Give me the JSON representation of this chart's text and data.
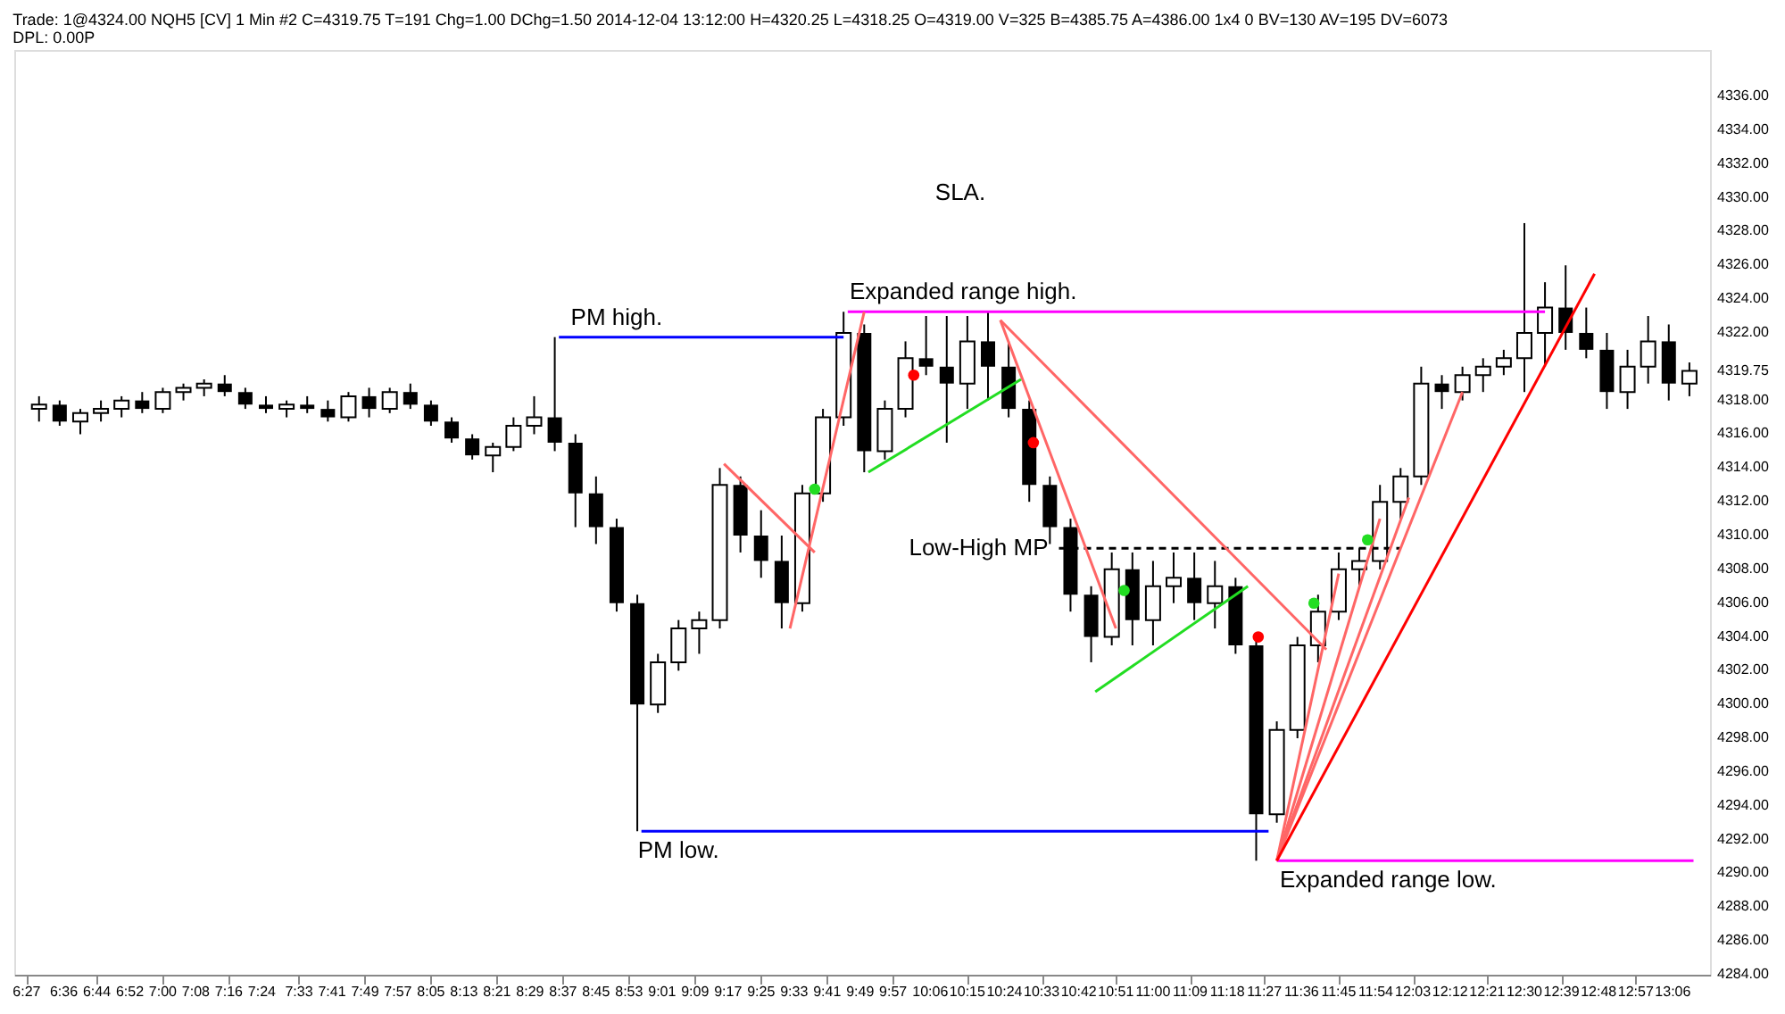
{
  "chart_data": {
    "type": "candlestick",
    "x": [
      6.5,
      6.5833,
      6.6667,
      6.75,
      6.8333,
      6.9167,
      7.0,
      7.0833,
      7.1667,
      7.25,
      7.3333,
      7.4167,
      7.5,
      7.5833,
      7.6667,
      7.75,
      7.8333,
      7.9167,
      8.0,
      8.0833,
      8.1667,
      8.25,
      8.3333,
      8.4167,
      8.5,
      8.5833,
      8.6667,
      8.75,
      8.8333,
      8.9167,
      9.0,
      9.0833,
      9.1667,
      9.25,
      9.3333,
      9.4167,
      9.5,
      9.5833,
      9.6667,
      9.75,
      9.8333,
      9.9167,
      10.0,
      10.0833,
      10.1667,
      10.25,
      10.3333,
      10.4167,
      10.5,
      10.5833,
      10.6667,
      10.75,
      10.8333,
      10.9167,
      11.0,
      11.0833,
      11.1667,
      11.25,
      11.3333,
      11.4167,
      11.5,
      11.5833,
      11.6667,
      11.75,
      11.8333,
      11.9167,
      12.0,
      12.0833,
      12.1667,
      12.25,
      12.3333,
      12.4167,
      12.5,
      12.5833,
      12.6667,
      12.75,
      12.8333,
      12.9167,
      13.0,
      13.0833,
      13.1667
    ],
    "ohlc": [
      [
        4317.5,
        4318.25,
        4316.75,
        4317.75
      ],
      [
        4317.75,
        4318,
        4316.5,
        4316.75
      ],
      [
        4316.75,
        4317.5,
        4316,
        4317.25
      ],
      [
        4317.25,
        4318,
        4316.75,
        4317.5
      ],
      [
        4317.5,
        4318.25,
        4317,
        4318
      ],
      [
        4318,
        4318.5,
        4317.25,
        4317.5
      ],
      [
        4317.5,
        4318.75,
        4317.25,
        4318.5
      ],
      [
        4318.5,
        4319,
        4318,
        4318.75
      ],
      [
        4318.75,
        4319.25,
        4318.25,
        4319
      ],
      [
        4319,
        4319.5,
        4318.25,
        4318.5
      ],
      [
        4318.5,
        4318.75,
        4317.5,
        4317.75
      ],
      [
        4317.75,
        4318.25,
        4317.25,
        4317.5
      ],
      [
        4317.5,
        4318,
        4317,
        4317.75
      ],
      [
        4317.75,
        4318.25,
        4317.25,
        4317.5
      ],
      [
        4317.5,
        4318,
        4316.75,
        4317
      ],
      [
        4317,
        4318.5,
        4316.75,
        4318.25
      ],
      [
        4318.25,
        4318.75,
        4317,
        4317.5
      ],
      [
        4317.5,
        4318.75,
        4317.25,
        4318.5
      ],
      [
        4318.5,
        4319,
        4317.5,
        4317.75
      ],
      [
        4317.75,
        4318,
        4316.5,
        4316.75
      ],
      [
        4316.75,
        4317,
        4315.5,
        4315.75
      ],
      [
        4315.75,
        4316,
        4314.5,
        4314.75
      ],
      [
        4314.75,
        4315.5,
        4313.75,
        4315.25
      ],
      [
        4315.25,
        4317,
        4315,
        4316.5
      ],
      [
        4316.5,
        4318.25,
        4316,
        4317
      ],
      [
        4317,
        4321.75,
        4315,
        4315.5
      ],
      [
        4315.5,
        4316,
        4310.5,
        4312.5
      ],
      [
        4312.5,
        4313.5,
        4309.5,
        4310.5
      ],
      [
        4310.5,
        4311,
        4305.5,
        4306
      ],
      [
        4306,
        4306.5,
        4292.5,
        4300
      ],
      [
        4300,
        4303,
        4299.5,
        4302.5
      ],
      [
        4302.5,
        4305,
        4302,
        4304.5
      ],
      [
        4304.5,
        4305.5,
        4303,
        4305
      ],
      [
        4305,
        4314,
        4304.5,
        4313
      ],
      [
        4313,
        4313.5,
        4309,
        4310
      ],
      [
        4310,
        4311.5,
        4307.5,
        4308.5
      ],
      [
        4308.5,
        4310,
        4304.5,
        4306
      ],
      [
        4306,
        4313,
        4305.5,
        4312.5
      ],
      [
        4312.5,
        4317.5,
        4312,
        4317
      ],
      [
        4317,
        4323.25,
        4316.5,
        4322
      ],
      [
        4322,
        4322.5,
        4313.75,
        4315
      ],
      [
        4315,
        4318,
        4314.5,
        4317.5
      ],
      [
        4317.5,
        4321.5,
        4317,
        4320.5
      ],
      [
        4320.5,
        4323,
        4319.5,
        4320
      ],
      [
        4320,
        4323,
        4315.5,
        4319
      ],
      [
        4319,
        4323,
        4317.5,
        4321.5
      ],
      [
        4321.5,
        4323.25,
        4318,
        4320
      ],
      [
        4320,
        4321.5,
        4317,
        4317.5
      ],
      [
        4317.5,
        4318,
        4312,
        4313
      ],
      [
        4313,
        4313.5,
        4309.5,
        4310.5
      ],
      [
        4310.5,
        4311,
        4305.5,
        4306.5
      ],
      [
        4306.5,
        4307,
        4302.5,
        4304
      ],
      [
        4304,
        4309,
        4303.5,
        4308
      ],
      [
        4308,
        4309,
        4303.5,
        4305
      ],
      [
        4305,
        4308.5,
        4303.5,
        4307
      ],
      [
        4307,
        4309,
        4306,
        4307.5
      ],
      [
        4307.5,
        4309,
        4305,
        4306
      ],
      [
        4306,
        4308.5,
        4304.5,
        4307
      ],
      [
        4307,
        4307.5,
        4303,
        4303.5
      ],
      [
        4303.5,
        4304,
        4290.75,
        4293.5
      ],
      [
        4293.5,
        4299,
        4293,
        4298.5
      ],
      [
        4298.5,
        4304,
        4298,
        4303.5
      ],
      [
        4303.5,
        4306.5,
        4302.5,
        4305.5
      ],
      [
        4305.5,
        4309,
        4305,
        4308
      ],
      [
        4308,
        4309.25,
        4307,
        4308.5
      ],
      [
        4308.5,
        4313,
        4308,
        4312
      ],
      [
        4312,
        4314,
        4311,
        4313.5
      ],
      [
        4313.5,
        4320,
        4313,
        4319
      ],
      [
        4319,
        4319.5,
        4317.5,
        4318.5
      ],
      [
        4318.5,
        4320,
        4318,
        4319.5
      ],
      [
        4319.5,
        4320.5,
        4318.5,
        4320
      ],
      [
        4320,
        4321,
        4319.5,
        4320.5
      ],
      [
        4320.5,
        4328.5,
        4318.5,
        4322
      ],
      [
        4322,
        4325,
        4320,
        4323.5
      ],
      [
        4323.5,
        4326,
        4321,
        4322
      ],
      [
        4322,
        4323.5,
        4320.5,
        4321
      ],
      [
        4321,
        4322,
        4317.5,
        4318.5
      ],
      [
        4318.5,
        4321,
        4317.5,
        4320
      ],
      [
        4320,
        4323,
        4319,
        4321.5
      ],
      [
        4321.5,
        4322.5,
        4318,
        4319
      ],
      [
        4319,
        4320.25,
        4318.25,
        4319.75
      ]
    ],
    "series": [
      {
        "type": "line",
        "color": "#0000ff",
        "x": [
          8.6,
          9.75
        ],
        "values": [
          4321.75,
          4321.75
        ]
      },
      {
        "type": "line",
        "color": "#0000ff",
        "x": [
          8.9333,
          11.4667
        ],
        "values": [
          4292.5,
          4292.5
        ]
      },
      {
        "type": "line",
        "color": "#ff00ff",
        "x": [
          9.7667,
          12.5833
        ],
        "values": [
          4323.25,
          4323.25
        ]
      },
      {
        "type": "line",
        "color": "#ff00ff",
        "x": [
          11.5,
          13.1833
        ],
        "values": [
          4290.75,
          4290.75
        ]
      },
      {
        "type": "line",
        "color": "#000000",
        "line_style": "dashed",
        "x": [
          10.62,
          12.0
        ],
        "values": [
          4309.25,
          4309.25
        ]
      },
      {
        "type": "line",
        "color": "#ff6666",
        "x": [
          9.2667,
          9.6333
        ],
        "values": [
          4314.25,
          4309
        ]
      },
      {
        "type": "line",
        "color": "#ff6666",
        "x": [
          9.5333,
          9.8333
        ],
        "values": [
          4304.5,
          4323.25
        ]
      },
      {
        "type": "line",
        "color": "#ff6666",
        "x": [
          10.3833,
          10.85
        ],
        "values": [
          4322.75,
          4304.5
        ]
      },
      {
        "type": "line",
        "color": "#ff6666",
        "x": [
          10.3833,
          11.7
        ],
        "values": [
          4322.75,
          4303.25
        ]
      },
      {
        "type": "line",
        "color": "#ff6666",
        "x": [
          11.5,
          11.75
        ],
        "values": [
          4290.75,
          4307.75
        ]
      },
      {
        "type": "line",
        "color": "#ff6666",
        "x": [
          11.5,
          11.9167
        ],
        "values": [
          4290.75,
          4311
        ]
      },
      {
        "type": "line",
        "color": "#ff6666",
        "x": [
          11.5,
          12.0333
        ],
        "values": [
          4290.75,
          4312.25
        ]
      },
      {
        "type": "line",
        "color": "#ff6666",
        "x": [
          11.5,
          12.25
        ],
        "values": [
          4290.75,
          4318.5
        ]
      },
      {
        "type": "line",
        "color": "#ff0000",
        "x": [
          11.5,
          12.7833
        ],
        "values": [
          4290.75,
          4325.5
        ]
      },
      {
        "type": "line",
        "color": "#22dd22",
        "x": [
          9.85,
          10.4667
        ],
        "values": [
          4313.75,
          4319.25
        ]
      },
      {
        "type": "line",
        "color": "#22dd22",
        "x": [
          10.7667,
          11.3833
        ],
        "values": [
          4300.75,
          4307
        ]
      },
      {
        "type": "scatter",
        "color": "#ff0000",
        "x": [
          10.0333,
          10.5167,
          11.425
        ],
        "values": [
          4319.5,
          4315.5,
          4304
        ]
      },
      {
        "type": "scatter",
        "color": "#22dd22",
        "x": [
          9.6333,
          10.8833,
          11.65,
          11.8667
        ],
        "values": [
          4312.75,
          4306.75,
          4306,
          4309.75
        ]
      }
    ],
    "xlim": [
      6.4,
      13.25
    ],
    "xticks": [
      {
        "value": 6.45,
        "label": "6:27"
      },
      {
        "value": 6.6,
        "label": "6:36"
      },
      {
        "value": 6.7333,
        "label": "6:44"
      },
      {
        "value": 6.8667,
        "label": "6:52"
      },
      {
        "value": 7.0,
        "label": "7:00"
      },
      {
        "value": 7.1333,
        "label": "7:08"
      },
      {
        "value": 7.2667,
        "label": "7:16"
      },
      {
        "value": 7.4,
        "label": "7:24"
      },
      {
        "value": 7.55,
        "label": "7:33"
      },
      {
        "value": 7.6833,
        "label": "7:41"
      },
      {
        "value": 7.8167,
        "label": "7:49"
      },
      {
        "value": 7.95,
        "label": "7:57"
      },
      {
        "value": 8.0833,
        "label": "8:05"
      },
      {
        "value": 8.2167,
        "label": "8:13"
      },
      {
        "value": 8.35,
        "label": "8:21"
      },
      {
        "value": 8.4833,
        "label": "8:29"
      },
      {
        "value": 8.6167,
        "label": "8:37"
      },
      {
        "value": 8.75,
        "label": "8:45"
      },
      {
        "value": 8.8833,
        "label": "8:53"
      },
      {
        "value": 9.0167,
        "label": "9:01"
      },
      {
        "value": 9.15,
        "label": "9:09"
      },
      {
        "value": 9.2833,
        "label": "9:17"
      },
      {
        "value": 9.4167,
        "label": "9:25"
      },
      {
        "value": 9.55,
        "label": "9:33"
      },
      {
        "value": 9.6833,
        "label": "9:41"
      },
      {
        "value": 9.8167,
        "label": "9:49"
      },
      {
        "value": 9.95,
        "label": "9:57"
      },
      {
        "value": 10.1,
        "label": "10:06"
      },
      {
        "value": 10.25,
        "label": "10:15"
      },
      {
        "value": 10.4,
        "label": "10:24"
      },
      {
        "value": 10.55,
        "label": "10:33"
      },
      {
        "value": 10.7,
        "label": "10:42"
      },
      {
        "value": 10.85,
        "label": "10:51"
      },
      {
        "value": 11.0,
        "label": "11:00"
      },
      {
        "value": 11.15,
        "label": "11:09"
      },
      {
        "value": 11.3,
        "label": "11:18"
      },
      {
        "value": 11.45,
        "label": "11:27"
      },
      {
        "value": 11.6,
        "label": "11:36"
      },
      {
        "value": 11.75,
        "label": "11:45"
      },
      {
        "value": 11.9,
        "label": "11:54"
      },
      {
        "value": 12.05,
        "label": "12:03"
      },
      {
        "value": 12.2,
        "label": "12:12"
      },
      {
        "value": 12.35,
        "label": "12:21"
      },
      {
        "value": 12.5,
        "label": "12:30"
      },
      {
        "value": 12.65,
        "label": "12:39"
      },
      {
        "value": 12.8,
        "label": "12:48"
      },
      {
        "value": 12.95,
        "label": "12:57"
      },
      {
        "value": 13.1,
        "label": "13:06"
      }
    ],
    "ylim": [
      4284,
      4338.75
    ],
    "yticks": [
      {
        "value": 4284,
        "label": "4284.00"
      },
      {
        "value": 4286,
        "label": "4286.00"
      },
      {
        "value": 4288,
        "label": "4288.00"
      },
      {
        "value": 4290,
        "label": "4290.00"
      },
      {
        "value": 4292,
        "label": "4292.00"
      },
      {
        "value": 4294,
        "label": "4294.00"
      },
      {
        "value": 4296,
        "label": "4296.00"
      },
      {
        "value": 4298,
        "label": "4298.00"
      },
      {
        "value": 4300,
        "label": "4300.00"
      },
      {
        "value": 4302,
        "label": "4302.00"
      },
      {
        "value": 4304,
        "label": "4304.00"
      },
      {
        "value": 4306,
        "label": "4306.00"
      },
      {
        "value": 4308,
        "label": "4308.00"
      },
      {
        "value": 4310,
        "label": "4310.00"
      },
      {
        "value": 4312,
        "label": "4312.00"
      },
      {
        "value": 4314,
        "label": "4314.00"
      },
      {
        "value": 4316,
        "label": "4316.00"
      },
      {
        "value": 4318,
        "label": "4318.00"
      },
      {
        "value": 4319.75,
        "label": "4319.75"
      },
      {
        "value": 4322,
        "label": "4322.00"
      },
      {
        "value": 4324,
        "label": "4324.00"
      },
      {
        "value": 4326,
        "label": "4326.00"
      },
      {
        "value": 4328,
        "label": "4328.00"
      },
      {
        "value": 4330,
        "label": "4330.00"
      },
      {
        "value": 4332,
        "label": "4332.00"
      },
      {
        "value": 4334,
        "label": "4334.00"
      },
      {
        "value": 4336,
        "label": "4336.00"
      }
    ],
    "grid": false,
    "title": "Trade: 1@4324.00 NQH5 [CV]  1 Min  #2 C=4319.75 T=191 Chg=1.00 DChg=1.50 2014-12-04 13:12:00 H=4320.25 L=4318.25 O=4319.00 V=325 B=4385.75 A=4386.00 1x4 0 BV=130 AV=195 DV=6073",
    "subtitle": "DPL: 0.00P",
    "annotations": [
      "SLA.",
      {
        "text": "PM high.",
        "x": 8.8333,
        "y": 4321.75
      },
      {
        "text": "Expanded range high.",
        "x": 10.2333,
        "y": 4323.25
      },
      {
        "text": "Low-High MP",
        "x": 10.62,
        "y": 4309.25
      },
      {
        "text": "PM low.",
        "x": 9.0833,
        "y": 4292.5
      },
      {
        "text": "Expanded range low.",
        "x": 11.95,
        "y": 4290.75
      }
    ]
  }
}
